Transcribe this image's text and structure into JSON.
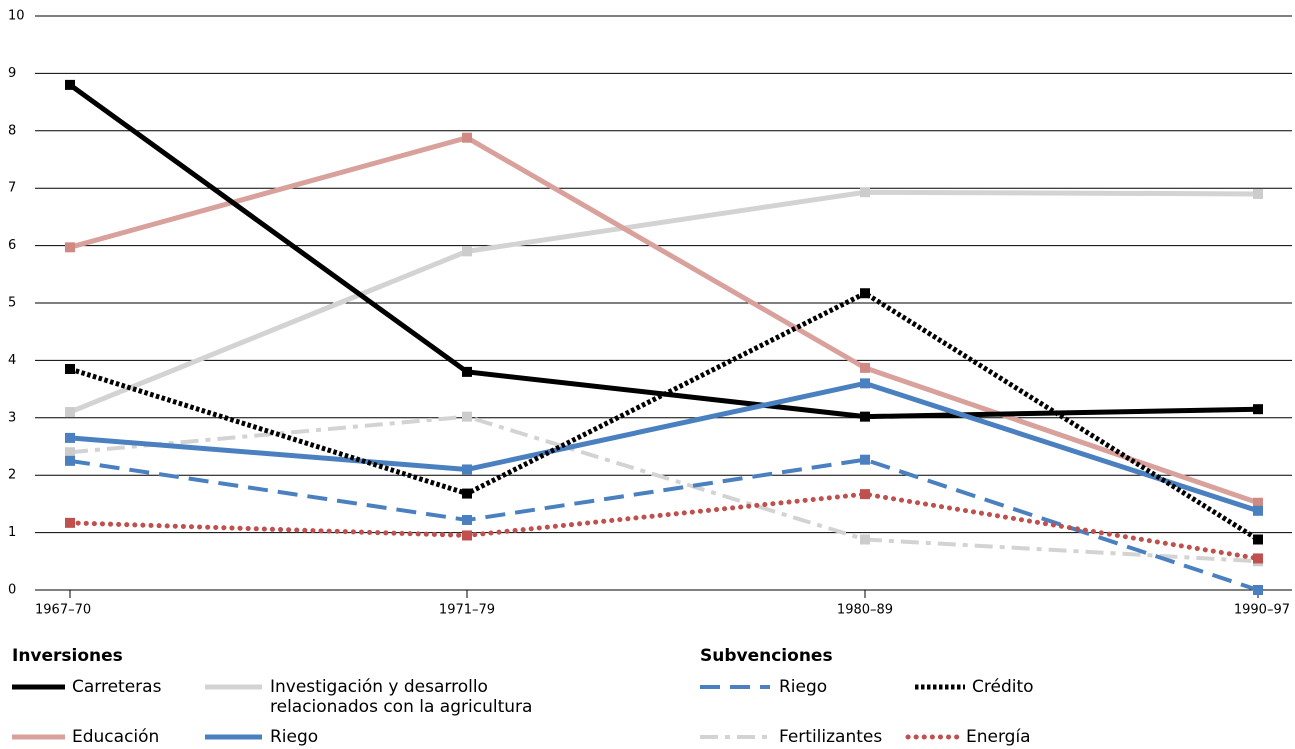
{
  "chart_data": {
    "type": "line",
    "categories": [
      "1967–70",
      "1971–79",
      "1980–89",
      "1990–97"
    ],
    "ylim": [
      0,
      10
    ],
    "yticks": [
      0,
      1,
      2,
      3,
      4,
      5,
      6,
      7,
      8,
      9,
      10
    ],
    "grid": true,
    "legend_groups": [
      "Inversiones",
      "Subvenciones"
    ],
    "series": [
      {
        "name": "Carreteras",
        "color": "#000000",
        "dash": "solid",
        "values": [
          8.8,
          3.8,
          3.02,
          3.15
        ]
      },
      {
        "name": "Investigación y desarrollo relacionados con la agricultura",
        "color": "#d3d3d3",
        "dash": "solid",
        "values": [
          3.1,
          5.9,
          6.93,
          6.9
        ]
      },
      {
        "name": "Educación",
        "color": "#d9a19b",
        "dash": "solid",
        "values": [
          5.97,
          7.88,
          3.87,
          1.52
        ]
      },
      {
        "name": "Riego",
        "color": "#4a80c0",
        "dash": "solid",
        "values": [
          2.65,
          2.1,
          3.6,
          1.38
        ]
      },
      {
        "name": "Riego",
        "color": "#4a80c0",
        "dash": "dashed",
        "values": [
          2.25,
          1.22,
          2.27,
          0.0
        ]
      },
      {
        "name": "Crédito",
        "color": "#000000",
        "dash": "dotted",
        "values": [
          3.85,
          1.68,
          5.17,
          0.88
        ]
      },
      {
        "name": "Fertilizantes",
        "color": "#d3d3d3",
        "dash": "dashdot",
        "values": [
          2.4,
          3.02,
          0.88,
          0.5
        ]
      },
      {
        "name": "Energía",
        "color": "#c0504d",
        "dash": "rounddot",
        "values": [
          1.17,
          0.95,
          1.67,
          0.55
        ]
      }
    ]
  }
}
